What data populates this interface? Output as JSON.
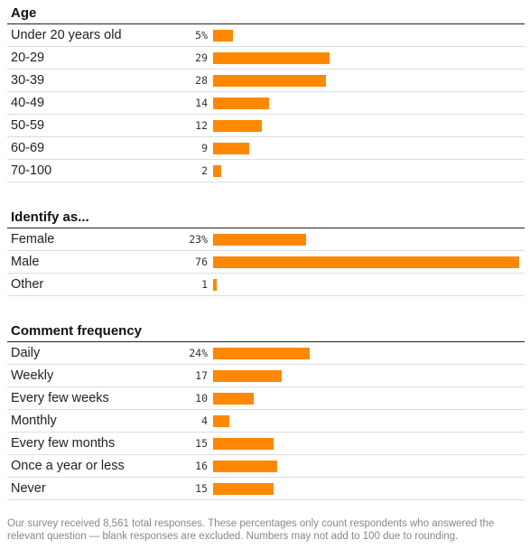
{
  "chart_data": [
    {
      "type": "bar",
      "orientation": "horizontal",
      "title": "Age",
      "categories": [
        "Under 20 years old",
        "20-29",
        "30-39",
        "40-49",
        "50-59",
        "60-69",
        "70-100"
      ],
      "values": [
        5,
        29,
        28,
        14,
        12,
        9,
        2
      ],
      "value_labels": [
        "5%",
        "29",
        "28",
        "14",
        "12",
        "9",
        "2"
      ],
      "unit": "%",
      "bar_color": "#ff8800"
    },
    {
      "type": "bar",
      "orientation": "horizontal",
      "title": "Identify as...",
      "categories": [
        "Female",
        "Male",
        "Other"
      ],
      "values": [
        23,
        76,
        1
      ],
      "value_labels": [
        "23%",
        "76",
        "1"
      ],
      "unit": "%",
      "bar_color": "#ff8800"
    },
    {
      "type": "bar",
      "orientation": "horizontal",
      "title": "Comment frequency",
      "categories": [
        "Daily",
        "Weekly",
        "Every few weeks",
        "Monthly",
        "Every few months",
        "Once a year or less",
        "Never"
      ],
      "values": [
        24,
        17,
        10,
        4,
        15,
        16,
        15
      ],
      "value_labels": [
        "24%",
        "17",
        "10",
        "4",
        "15",
        "16",
        "15"
      ],
      "unit": "%",
      "bar_color": "#ff8800"
    }
  ],
  "footnote": "Our survey received 8,561 total responses. These percentages only count respondents who answered the relevant question — blank responses are excluded. Numbers may not add to 100 due to rounding.",
  "colors": {
    "bar": "#ff8800",
    "rule": "#222222",
    "row_divider": "#dddddd",
    "footnote_text": "#888888"
  }
}
